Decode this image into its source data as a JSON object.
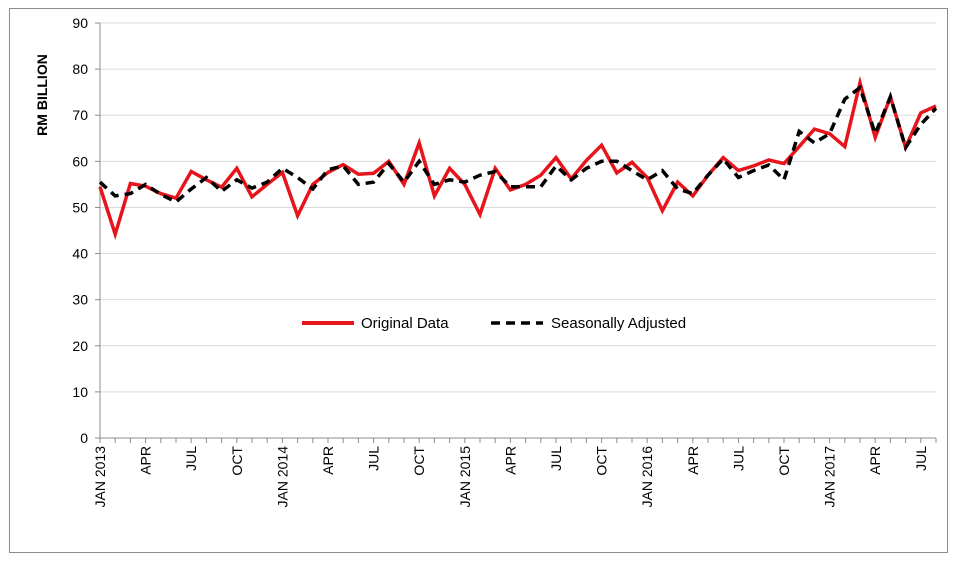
{
  "chart_data": {
    "type": "line",
    "ylabel": "RM BILLION",
    "xlabel": "",
    "ylim": [
      0,
      90
    ],
    "yticks": [
      0,
      10,
      20,
      30,
      40,
      50,
      60,
      70,
      80,
      90
    ],
    "x_tick_labels": [
      "JAN 2013",
      "APR",
      "JUL",
      "OCT",
      "JAN 2014",
      "APR",
      "JUL",
      "OCT",
      "JAN 2015",
      "APR",
      "JUL",
      "OCT",
      "JAN 2016",
      "APR",
      "JUL",
      "OCT",
      "JAN 2017",
      "APR",
      "JUL"
    ],
    "x_start": "2013-01",
    "x_end": "2017-08",
    "legend_position": "center",
    "grid": "horizontal",
    "series": [
      {
        "name": "Original Data",
        "color": "#e8141c",
        "style": "solid",
        "values": [
          54.5,
          44.2,
          55.2,
          54.6,
          53.0,
          52.0,
          57.8,
          56.0,
          54.4,
          58.5,
          52.3,
          55.0,
          57.6,
          48.2,
          55.0,
          57.6,
          59.3,
          57.2,
          57.4,
          60.0,
          55.0,
          64.0,
          52.5,
          58.5,
          55.0,
          48.5,
          58.5,
          53.8,
          55.0,
          57.0,
          60.8,
          56.2,
          60.2,
          63.5,
          57.5,
          59.8,
          56.5,
          49.3,
          55.5,
          52.5,
          57.0,
          60.8,
          58.0,
          59.0,
          60.3,
          59.5,
          63.2,
          67.0,
          66.0,
          63.2,
          77.0,
          65.2,
          74.0,
          63.0,
          70.5,
          72.0
        ]
      },
      {
        "name": "Seasonally Adjusted",
        "color": "#000000",
        "style": "dashed",
        "values": [
          55.5,
          52.5,
          53.0,
          55.0,
          52.8,
          51.2,
          54.0,
          56.5,
          53.5,
          56.0,
          54.2,
          55.5,
          58.5,
          56.5,
          54.0,
          58.2,
          59.0,
          55.0,
          55.5,
          59.5,
          55.5,
          60.0,
          55.0,
          56.0,
          55.5,
          57.0,
          57.8,
          54.5,
          54.5,
          54.5,
          59.0,
          56.0,
          58.5,
          60.0,
          60.0,
          58.0,
          56.0,
          58.0,
          54.0,
          53.0,
          57.0,
          60.5,
          56.5,
          58.0,
          59.2,
          56.0,
          66.5,
          64.0,
          66.0,
          73.5,
          76.0,
          66.0,
          74.0,
          63.0,
          68.0,
          71.5
        ]
      }
    ]
  }
}
